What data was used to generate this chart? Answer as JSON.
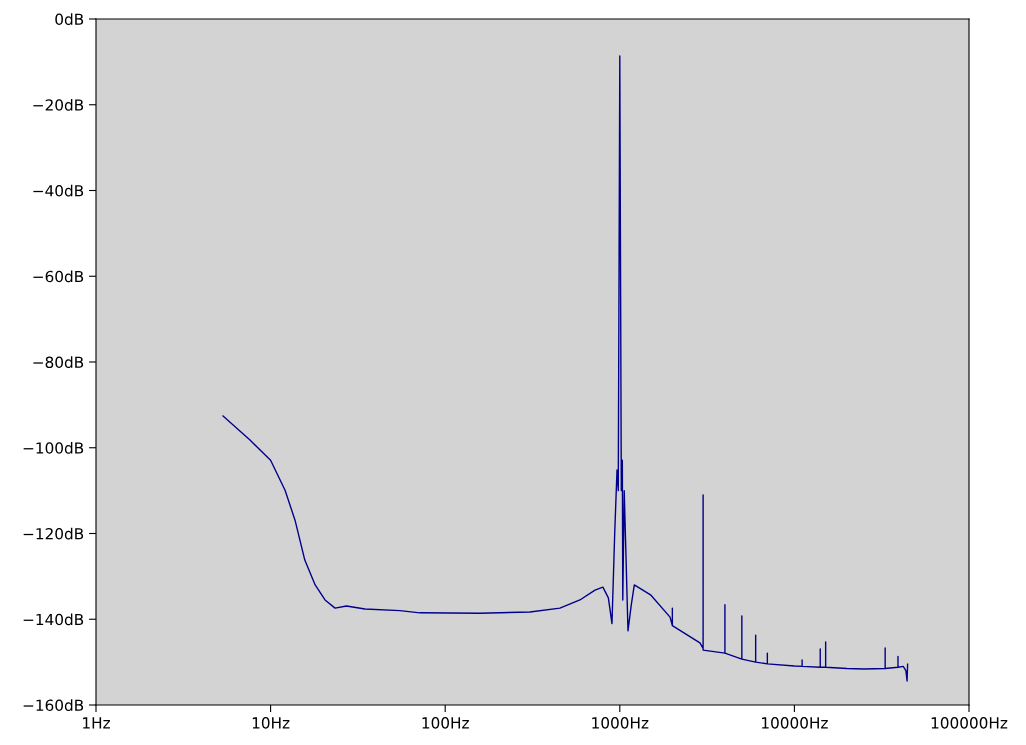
{
  "chart_data": {
    "type": "line",
    "log": "x",
    "grid": false,
    "marker": "none",
    "line_style": "solid",
    "xlim": [
      1,
      100000
    ],
    "xticks": [
      {
        "value": 1,
        "label": "1Hz"
      },
      {
        "value": 10,
        "label": "10Hz"
      },
      {
        "value": 100,
        "label": "100Hz"
      },
      {
        "value": 1000,
        "label": "1000Hz"
      },
      {
        "value": 10000,
        "label": "10000Hz"
      },
      {
        "value": 100000,
        "label": "100000Hz"
      }
    ],
    "ylim": [
      -160,
      0
    ],
    "yticks": [
      {
        "value": 0,
        "label": "0dB"
      },
      {
        "value": -20,
        "label": "−20dB"
      },
      {
        "value": -40,
        "label": "−40dB"
      },
      {
        "value": -60,
        "label": "−60dB"
      },
      {
        "value": -80,
        "label": "−80dB"
      },
      {
        "value": -100,
        "label": "−100dB"
      },
      {
        "value": -120,
        "label": "−120dB"
      },
      {
        "value": -140,
        "label": "−140dB"
      },
      {
        "value": -160,
        "label": "−160dB"
      }
    ],
    "series": [
      {
        "color": "#00008b",
        "x": [
          5.34,
          7.62,
          10,
          12.1,
          13.8,
          15.7,
          18,
          20.5,
          23.4,
          27.2,
          34.7,
          55,
          71.8,
          158,
          306,
          454,
          591,
          721,
          800,
          860,
          902,
          935,
          964,
          980,
          1000,
          1020,
          1034,
          1040,
          1060,
          1114,
          1163,
          1211,
          1500,
          1940,
          2000,
          2000,
          2000,
          2877,
          3000,
          3000,
          3000,
          4000,
          4000,
          4000,
          5000,
          5000,
          5000,
          6000,
          6000,
          6000,
          7000,
          7000,
          7000,
          10000,
          11070,
          11070,
          11070,
          14060,
          14060,
          14060,
          15100,
          15100,
          15100,
          20000,
          25000,
          33100,
          33100,
          33100,
          39200,
          39200,
          39200,
          42000,
          43500,
          44200,
          44500
        ],
        "values": [
          -92.6,
          -98.2,
          -102.9,
          -109.9,
          -116.9,
          -126.2,
          -132,
          -135.5,
          -137.4,
          -136.9,
          -137.6,
          -138.0,
          -138.5,
          -138.6,
          -138.3,
          -137.4,
          -135.5,
          -133.2,
          -132.5,
          -135,
          -141,
          -120,
          -105.2,
          -110,
          -8.6,
          -110,
          -102.9,
          -135.5,
          -110,
          -142.7,
          -136.7,
          -132,
          -134.3,
          -139.5,
          -141.5,
          -137.4,
          -141.5,
          -145.5,
          -146.8,
          -111.0,
          -147.2,
          -147.9,
          -136.6,
          -147.9,
          -149.3,
          -139.2,
          -149.3,
          -150,
          -143.7,
          -150,
          -150.4,
          -147.9,
          -150.4,
          -150.9,
          -151,
          -149.5,
          -151,
          -151.2,
          -146.9,
          -151.2,
          -151.2,
          -145.3,
          -151.2,
          -151.5,
          -151.6,
          -151.5,
          -146.7,
          -151.5,
          -151.2,
          -148.7,
          -151.2,
          -151,
          -152,
          -154.4,
          -150.5
        ]
      }
    ]
  }
}
